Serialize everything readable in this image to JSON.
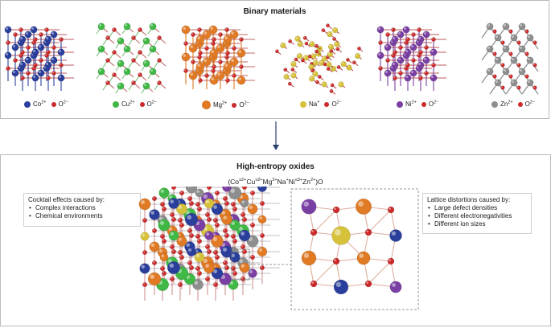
{
  "top": {
    "title": "Binary materials",
    "structures": [
      {
        "cation": "Co",
        "charge": "2+",
        "color": "#2a3f9c",
        "layout": "rocksalt"
      },
      {
        "cation": "Cu",
        "charge": "2+",
        "color": "#3fb845",
        "layout": "tenorite"
      },
      {
        "cation": "Mg",
        "charge": "2+",
        "color": "#e07a24",
        "layout": "rocksalt-big"
      },
      {
        "cation": "Na",
        "charge": "+",
        "color": "#d6c23a",
        "layout": "peroxide"
      },
      {
        "cation": "Ni",
        "charge": "2+",
        "color": "#7a3fa3",
        "layout": "rocksalt"
      },
      {
        "cation": "Zn",
        "charge": "2+",
        "color": "#8e8e8e",
        "layout": "wurtzite"
      }
    ],
    "oxygen": {
      "label": "O",
      "charge": "2−",
      "color": "#cc2a2a"
    }
  },
  "bottom": {
    "title": "High-entropy oxides",
    "formula_parts": [
      {
        "t": "(Co"
      },
      {
        "s": "≤2+"
      },
      {
        "t": "Cu"
      },
      {
        "s": "≤2+"
      },
      {
        "t": "Mg"
      },
      {
        "s": "2+"
      },
      {
        "t": "Na"
      },
      {
        "s": "+"
      },
      {
        "t": "Ni"
      },
      {
        "s": "≤3+"
      },
      {
        "t": "Zn"
      },
      {
        "s": "2+"
      },
      {
        "t": ")O"
      }
    ],
    "left_note": {
      "heading": "Cocktail effects caused by:",
      "items": [
        "Complex interactions",
        "Chemical environments"
      ]
    },
    "right_note": {
      "heading": "Lattice distortions caused by:",
      "items": [
        "Large defect densities",
        "Different electronegativities",
        "Different ion sizes"
      ]
    }
  }
}
